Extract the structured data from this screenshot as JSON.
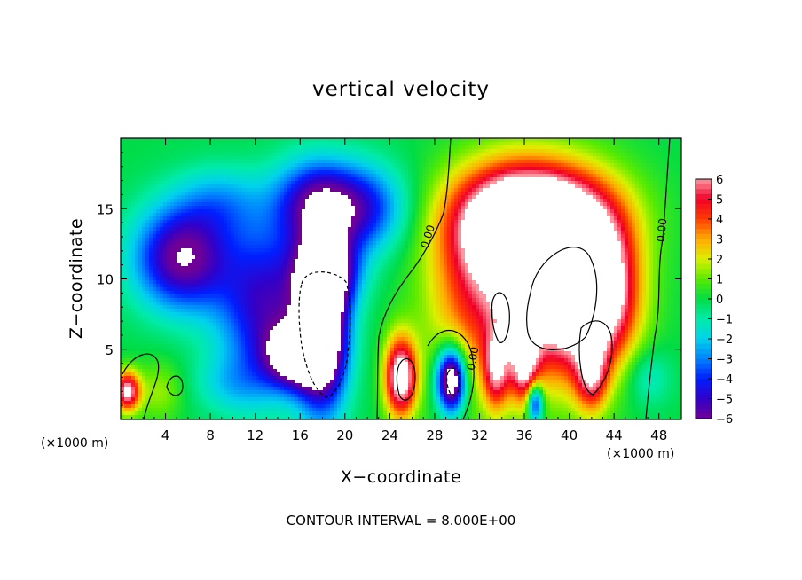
{
  "chart_data": {
    "type": "heatmap",
    "title": "vertical velocity",
    "xlabel": "X−coordinate",
    "ylabel": "Z−coordinate",
    "x_unit_note": "(×1000 m)",
    "x_ticks": [
      "4",
      "8",
      "12",
      "16",
      "20",
      "24",
      "28",
      "32",
      "36",
      "40",
      "44",
      "48"
    ],
    "y_ticks": [
      "5",
      "10",
      "15"
    ],
    "xlim": [
      0,
      50
    ],
    "ylim": [
      0,
      20
    ],
    "colorbar": {
      "ticks": [
        "6",
        "5",
        "4",
        "3",
        "2",
        "1",
        "0",
        "−1",
        "−2",
        "−3",
        "−4",
        "−5",
        "−6"
      ],
      "range": [
        -6,
        6
      ]
    },
    "contour_labels": [
      "0.00",
      "0.00",
      "0.00"
    ],
    "footer": "CONTOUR INTERVAL = 8.000E+00",
    "features": [
      {
        "x": 5.5,
        "z": 11.5,
        "w": -6.2,
        "sx": 3.0,
        "sz": 2.6
      },
      {
        "x": 13.0,
        "z": 8.0,
        "w": -5.0,
        "sx": 3.0,
        "sz": 4.0
      },
      {
        "x": 15.5,
        "z": 4.5,
        "w": -6.0,
        "sx": 1.8,
        "sz": 1.5
      },
      {
        "x": 21.0,
        "z": 15.0,
        "w": -4.8,
        "sx": 3.0,
        "sz": 2.2
      },
      {
        "x": 17.0,
        "z": 15.5,
        "w": -3.8,
        "sx": 2.5,
        "sz": 2.2
      },
      {
        "x": 9.0,
        "z": 15.5,
        "w": -2.0,
        "sx": 2.8,
        "sz": 1.8
      },
      {
        "x": 18.0,
        "z": 6.5,
        "w": -9.0,
        "sx": 1.6,
        "sz": 4.0
      },
      {
        "x": 18.5,
        "z": 10.5,
        "w": -5.0,
        "sx": 2.0,
        "sz": 1.8
      },
      {
        "x": 10.0,
        "z": 2.5,
        "w": -1.5,
        "sx": 2.5,
        "sz": 1.5
      },
      {
        "x": 47.0,
        "z": 3.0,
        "w": -1.5,
        "sx": 1.5,
        "sz": 1.5
      },
      {
        "x": 37.0,
        "z": 14.5,
        "w": 5.5,
        "sx": 5.0,
        "sz": 2.5
      },
      {
        "x": 37.5,
        "z": 10.0,
        "w": 6.0,
        "sx": 4.5,
        "sz": 4.5
      },
      {
        "x": 40.5,
        "z": 9.0,
        "w": 5.0,
        "sx": 2.8,
        "sz": 4.0
      },
      {
        "x": 35.0,
        "z": 13.5,
        "w": 4.0,
        "sx": 3.5,
        "sz": 3.0
      },
      {
        "x": 31.0,
        "z": 8.0,
        "w": 2.2,
        "sx": 3.0,
        "sz": 5.0
      },
      {
        "x": 43.5,
        "z": 9.0,
        "w": 4.0,
        "sx": 2.0,
        "sz": 3.5
      },
      {
        "x": 25.0,
        "z": 3.0,
        "w": 7.5,
        "sx": 1.0,
        "sz": 2.0
      },
      {
        "x": 0.6,
        "z": 2.0,
        "w": 6.5,
        "sx": 0.8,
        "sz": 1.0
      },
      {
        "x": 29.5,
        "z": 2.8,
        "w": -9.0,
        "sx": 0.9,
        "sz": 1.6
      },
      {
        "x": 37.0,
        "z": 1.2,
        "w": -5.5,
        "sx": 0.5,
        "sz": 1.0
      },
      {
        "x": 33.5,
        "z": 3.5,
        "w": 4.5,
        "sx": 0.8,
        "sz": 2.0
      },
      {
        "x": 36.0,
        "z": 4.0,
        "w": 5.0,
        "sx": 0.9,
        "sz": 2.0
      },
      {
        "x": 42.0,
        "z": 3.0,
        "w": 4.0,
        "sx": 1.0,
        "sz": 1.8
      },
      {
        "x": 3.5,
        "z": 2.0,
        "w": 1.5,
        "sx": 1.5,
        "sz": 1.5
      }
    ]
  }
}
